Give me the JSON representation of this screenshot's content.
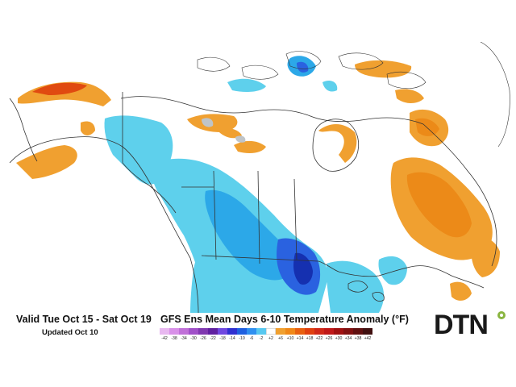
{
  "header": {
    "valid_period": "Valid Tue Oct 15 - Sat Oct 19",
    "updated": "Updated Oct 10"
  },
  "legend": {
    "title": "GFS Ens Mean Days 6-10 Temperature Anomaly (°F)",
    "ticks": [
      "-42",
      "-38",
      "-34",
      "-30",
      "-26",
      "-22",
      "-18",
      "-14",
      "-10",
      "-6",
      "-2",
      "+2",
      "+6",
      "+10",
      "+14",
      "+18",
      "+22",
      "+26",
      "+30",
      "+34",
      "+38",
      "+42"
    ],
    "colors": [
      "#e8b8f0",
      "#d890e8",
      "#c070d8",
      "#a050c8",
      "#8038b0",
      "#6020a0",
      "#7048e0",
      "#3030d0",
      "#2060e0",
      "#3090f0",
      "#58c8f0",
      "#ffffff",
      "#f0a030",
      "#f08818",
      "#e86010",
      "#e04010",
      "#d02818",
      "#c01818",
      "#a01010",
      "#801010",
      "#601010",
      "#401010"
    ]
  },
  "brand": {
    "logo": "DTN",
    "accent": "#8ab540"
  },
  "map_colors": {
    "cool_light": "#5ed0ec",
    "cool_mid": "#2ca8e8",
    "cool_deep": "#2a62e0",
    "cool_darkest": "#1530b0",
    "warm_light": "#f0a030",
    "warm_mid": "#ec8a18",
    "warm_hot": "#e04a10",
    "border": "#333333"
  }
}
